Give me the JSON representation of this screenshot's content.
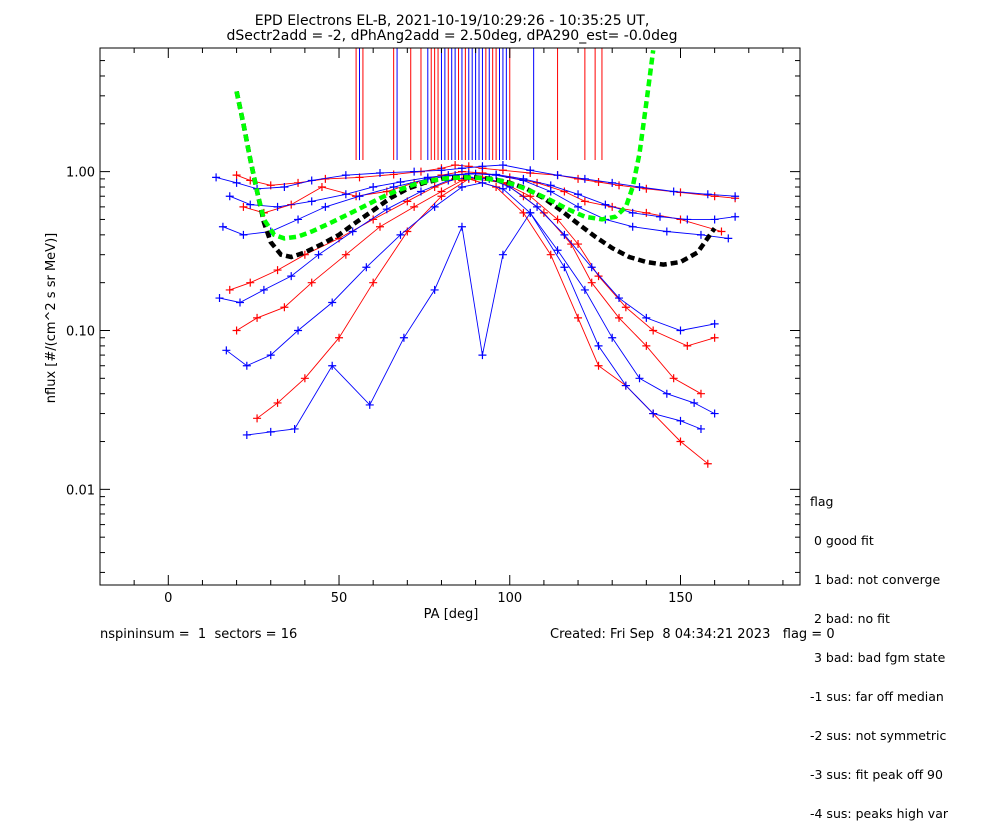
{
  "chart_data": {
    "type": "line",
    "title": "EPD Electrons EL-B, 2021-10-19/10:29:26 - 10:35:25 UT,",
    "subtitle": "dSectr2add = -2, dPhAng2add = 2.50deg, dPA290_est=  -0.0deg",
    "xlabel": "PA [deg]",
    "ylabel": "nflux [#/(cm^2 s sr MeV)]",
    "xlim": [
      -20,
      185
    ],
    "ylim": [
      0.0025,
      6.0
    ],
    "yscale": "log",
    "xticks": [
      "0",
      "50",
      "100",
      "150"
    ],
    "yticks": [
      "0.01",
      "0.10",
      "1.00"
    ],
    "grid": false,
    "series": [
      {
        "color": "#ff0000",
        "x": [
          20,
          24,
          30,
          38,
          46,
          56,
          66,
          74,
          80,
          84,
          88,
          92,
          98,
          106,
          114,
          120,
          126,
          132,
          140,
          150,
          160,
          166
        ],
        "values": [
          0.95,
          0.88,
          0.82,
          0.85,
          0.9,
          0.92,
          0.96,
          1.0,
          1.05,
          1.1,
          1.08,
          1.05,
          1.02,
          0.98,
          0.95,
          0.9,
          0.86,
          0.82,
          0.78,
          0.74,
          0.7,
          0.68
        ]
      },
      {
        "color": "#ff0000",
        "x": [
          22,
          28,
          36,
          45,
          55,
          64,
          72,
          80,
          86,
          92,
          100,
          108,
          116,
          122,
          130,
          140,
          150,
          162
        ],
        "values": [
          0.6,
          0.55,
          0.62,
          0.8,
          0.7,
          0.75,
          0.85,
          0.95,
          1.0,
          0.98,
          0.92,
          0.85,
          0.75,
          0.65,
          0.6,
          0.55,
          0.5,
          0.42
        ]
      },
      {
        "color": "#ff0000",
        "x": [
          18,
          24,
          32,
          40,
          50,
          60,
          70,
          78,
          84,
          90,
          98,
          106,
          114,
          120,
          126,
          134,
          142,
          152,
          160
        ],
        "values": [
          0.18,
          0.2,
          0.24,
          0.3,
          0.38,
          0.5,
          0.65,
          0.8,
          0.9,
          0.9,
          0.85,
          0.7,
          0.5,
          0.35,
          0.22,
          0.14,
          0.1,
          0.08,
          0.09
        ]
      },
      {
        "color": "#ff0000",
        "x": [
          20,
          26,
          34,
          42,
          52,
          62,
          72,
          80,
          86,
          92,
          98,
          104,
          110,
          118,
          124,
          132,
          140,
          148,
          156
        ],
        "values": [
          0.1,
          0.12,
          0.14,
          0.2,
          0.3,
          0.45,
          0.6,
          0.75,
          0.88,
          0.92,
          0.85,
          0.7,
          0.55,
          0.35,
          0.2,
          0.12,
          0.08,
          0.05,
          0.04
        ]
      },
      {
        "color": "#ff0000",
        "x": [
          26,
          32,
          40,
          50,
          60,
          70,
          80,
          88,
          96,
          104,
          112,
          120,
          126,
          134,
          142,
          150,
          158
        ],
        "values": [
          0.028,
          0.035,
          0.05,
          0.09,
          0.2,
          0.42,
          0.7,
          0.9,
          0.8,
          0.55,
          0.3,
          0.12,
          0.06,
          0.045,
          0.03,
          0.02,
          0.0145
        ]
      },
      {
        "color": "#0000ff",
        "x": [
          14,
          20,
          26,
          34,
          42,
          52,
          62,
          72,
          80,
          86,
          92,
          98,
          106,
          114,
          122,
          130,
          138,
          148,
          158,
          166
        ],
        "values": [
          0.92,
          0.85,
          0.78,
          0.8,
          0.88,
          0.95,
          0.98,
          1.0,
          1.02,
          1.05,
          1.08,
          1.1,
          1.02,
          0.95,
          0.9,
          0.85,
          0.8,
          0.75,
          0.72,
          0.7
        ]
      },
      {
        "color": "#0000ff",
        "x": [
          16,
          22,
          30,
          38,
          46,
          56,
          66,
          76,
          84,
          90,
          96,
          104,
          112,
          120,
          128,
          136,
          146,
          156,
          164
        ],
        "values": [
          0.45,
          0.4,
          0.42,
          0.5,
          0.6,
          0.7,
          0.8,
          0.9,
          0.95,
          0.97,
          0.95,
          0.88,
          0.75,
          0.6,
          0.5,
          0.45,
          0.42,
          0.4,
          0.38
        ]
      },
      {
        "color": "#0000ff",
        "x": [
          15,
          21,
          28,
          36,
          44,
          54,
          64,
          74,
          82,
          88,
          94,
          100,
          108,
          116,
          124,
          132,
          140,
          150,
          160
        ],
        "values": [
          0.16,
          0.15,
          0.18,
          0.22,
          0.3,
          0.42,
          0.58,
          0.75,
          0.88,
          0.92,
          0.9,
          0.8,
          0.6,
          0.4,
          0.25,
          0.16,
          0.12,
          0.1,
          0.11
        ]
      },
      {
        "color": "#0000ff",
        "x": [
          17,
          23,
          30,
          38,
          48,
          58,
          68,
          78,
          86,
          92,
          98,
          106,
          114,
          122,
          130,
          138,
          146,
          154,
          160
        ],
        "values": [
          0.075,
          0.06,
          0.07,
          0.1,
          0.15,
          0.25,
          0.4,
          0.6,
          0.8,
          0.85,
          0.78,
          0.55,
          0.32,
          0.18,
          0.09,
          0.05,
          0.04,
          0.035,
          0.03
        ]
      },
      {
        "color": "#0000ff",
        "x": [
          23,
          30,
          37,
          48,
          59,
          69,
          78,
          86,
          92,
          98,
          106,
          116,
          126,
          134,
          142,
          150,
          156
        ],
        "values": [
          0.022,
          0.023,
          0.024,
          0.06,
          0.034,
          0.09,
          0.18,
          0.45,
          0.07,
          0.3,
          0.55,
          0.25,
          0.08,
          0.045,
          0.03,
          0.027,
          0.024
        ]
      },
      {
        "color": "#0000ff",
        "x": [
          18,
          24,
          32,
          42,
          52,
          60,
          68,
          76,
          82,
          88,
          96,
          104,
          112,
          120,
          128,
          136,
          144,
          152,
          160,
          166
        ],
        "values": [
          0.7,
          0.62,
          0.6,
          0.65,
          0.72,
          0.8,
          0.86,
          0.92,
          0.95,
          0.97,
          0.96,
          0.9,
          0.82,
          0.72,
          0.62,
          0.55,
          0.52,
          0.5,
          0.5,
          0.52
        ]
      }
    ],
    "fit_curves": [
      {
        "color": "#000000",
        "x": [
          20,
          22,
          24,
          26,
          28,
          30,
          33,
          36,
          40,
          45,
          50,
          55,
          60,
          65,
          70,
          75,
          80,
          85,
          90,
          95,
          100,
          105,
          110,
          115,
          120,
          125,
          130,
          135,
          140,
          145,
          150,
          155,
          160
        ],
        "values": [
          3.2,
          2.0,
          1.2,
          0.75,
          0.48,
          0.36,
          0.3,
          0.29,
          0.31,
          0.35,
          0.4,
          0.48,
          0.57,
          0.68,
          0.78,
          0.85,
          0.9,
          0.92,
          0.92,
          0.9,
          0.85,
          0.78,
          0.68,
          0.57,
          0.47,
          0.39,
          0.33,
          0.29,
          0.27,
          0.26,
          0.27,
          0.31,
          0.44
        ]
      },
      {
        "color": "#00ff00",
        "x": [
          20,
          22,
          24,
          26,
          28,
          31,
          34,
          38,
          42,
          47,
          52,
          57,
          62,
          67,
          72,
          77,
          82,
          87,
          92,
          97,
          102,
          107,
          112,
          117,
          122,
          127,
          131,
          134,
          136,
          138,
          140,
          142
        ],
        "values": [
          3.2,
          2.0,
          1.2,
          0.75,
          0.5,
          0.4,
          0.38,
          0.39,
          0.42,
          0.47,
          0.53,
          0.6,
          0.68,
          0.76,
          0.83,
          0.88,
          0.91,
          0.92,
          0.91,
          0.88,
          0.82,
          0.74,
          0.66,
          0.58,
          0.52,
          0.5,
          0.52,
          0.6,
          0.8,
          1.3,
          2.7,
          5.8
        ]
      }
    ],
    "flag_ticks": [
      {
        "color": "#ff0000",
        "x": [
          55,
          57,
          66,
          71,
          74,
          77,
          78,
          79,
          82,
          85,
          87,
          93,
          95,
          96,
          100,
          114,
          122,
          125,
          127
        ]
      },
      {
        "color": "#0000ff",
        "x": [
          56,
          67,
          76,
          80,
          81,
          83,
          84,
          86,
          88,
          89,
          90,
          91,
          92,
          94,
          97,
          98,
          99,
          107
        ]
      }
    ]
  },
  "legend": {
    "title": "flag",
    "items": [
      " 0 good fit",
      " 1 bad: not converge",
      " 2 bad: no fit",
      " 3 bad: bad fgm state",
      "-1 sus: far off median",
      "-2 sus: not symmetric",
      "-3 sus: fit peak off 90",
      "-4 sus: peaks high var"
    ]
  },
  "footer": {
    "left": "nspininsum =  1  sectors = 16",
    "right": "Created: Fri Sep  8 04:34:21 2023   flag = 0"
  },
  "colors": {
    "red": "#ff0000",
    "blue": "#0000ff",
    "fit_black": "#000000",
    "fit_green": "#00ff00"
  }
}
